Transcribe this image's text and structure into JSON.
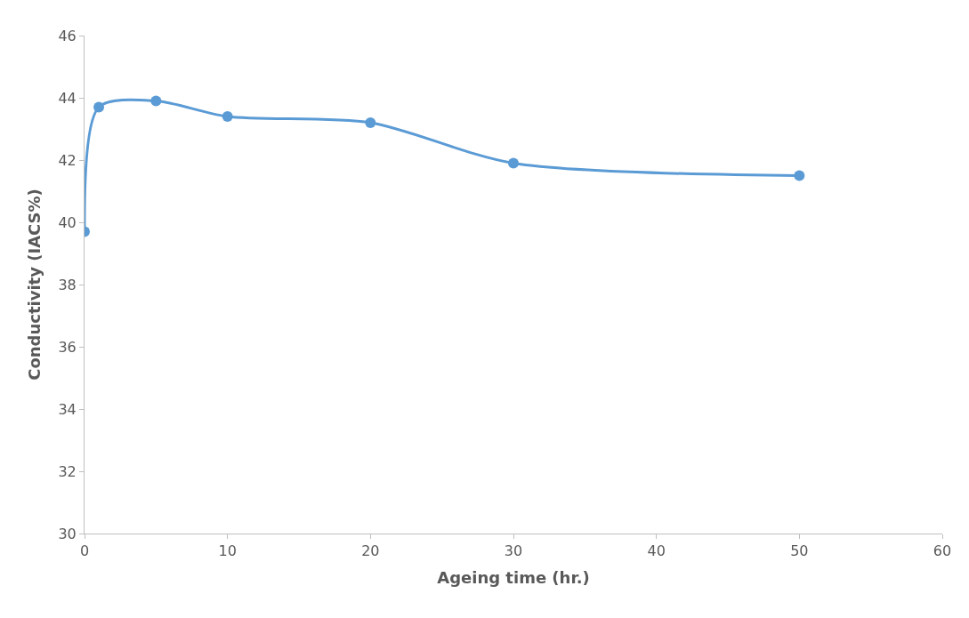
{
  "chart_data": {
    "type": "line",
    "xlabel": "Ageing time (hr.)",
    "ylabel": "Conductivity (IACS%)",
    "x": [
      0,
      1,
      5,
      10,
      20,
      30,
      50
    ],
    "series": [
      {
        "color": "#5b9bd5",
        "values": [
          39.7,
          43.7,
          43.9,
          43.4,
          43.2,
          41.9,
          41.5
        ]
      }
    ],
    "xlim": [
      0,
      60
    ],
    "xticks": [
      0,
      10,
      20,
      30,
      40,
      50,
      60
    ],
    "ylim": [
      30,
      46
    ],
    "yticks": [
      30,
      32,
      34,
      36,
      38,
      40,
      42,
      44,
      46
    ],
    "marker": "circle",
    "line_style": "solid"
  }
}
